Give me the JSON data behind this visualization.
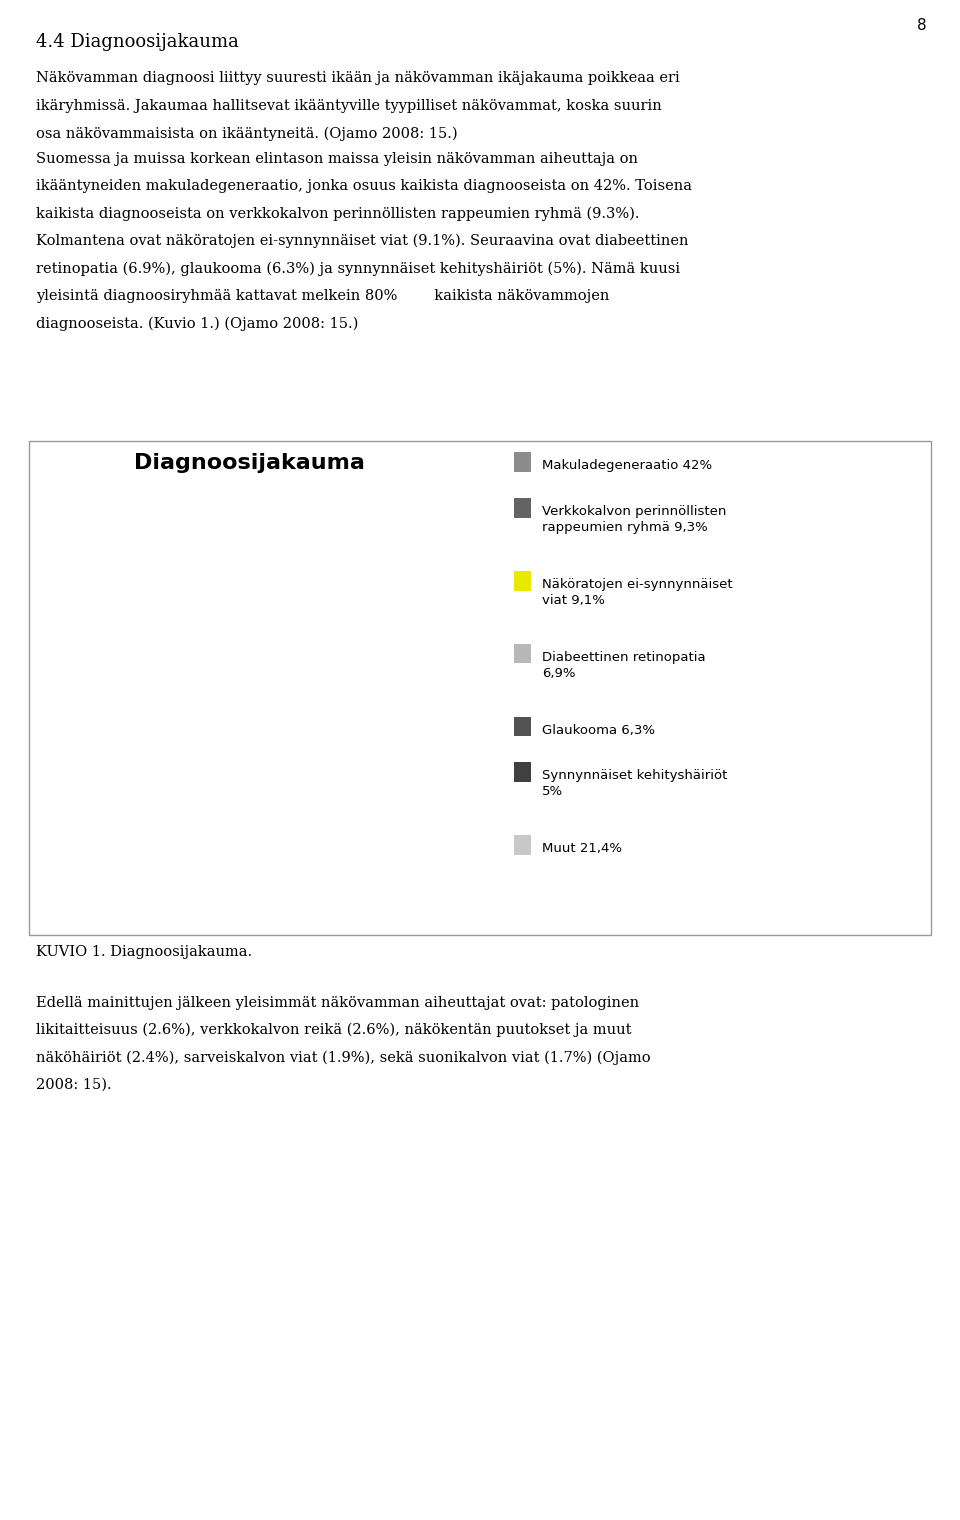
{
  "title": "Diagnoosijakauma",
  "page_number": "8",
  "heading": "4.4 Diagnoosijakauma",
  "slices": [
    42.0,
    9.3,
    9.1,
    6.9,
    6.3,
    5.0,
    21.4
  ],
  "colors_top": [
    "#8c8c8c",
    "#636363",
    "#e8e800",
    "#b8b8b8",
    "#525252",
    "#404040",
    "#c8c8c8"
  ],
  "colors_side": [
    "#6b6b6b",
    "#4a4a4a",
    "#b0b000",
    "#909090",
    "#383838",
    "#282828",
    "#a0a0a0"
  ],
  "labels": [
    "Makuladegeneraatio 42%",
    "Verkkokalvon perinnöllisten\nrappeumien ryhmä 9,3%",
    "Näköratojen ei-synnynnäiset\nviat 9,1%",
    "Diabeettinen retinopatia\n6,9%",
    "Glaukooma 6,3%",
    "Synnynnäiset kehityshäiriöt\n5%",
    "Muut 21,4%"
  ],
  "background_color": "#ffffff",
  "text_color": "#000000",
  "heading_fontsize": 13,
  "body_fontsize": 10.5,
  "chart_title_fontsize": 16,
  "legend_fontsize": 9.5
}
